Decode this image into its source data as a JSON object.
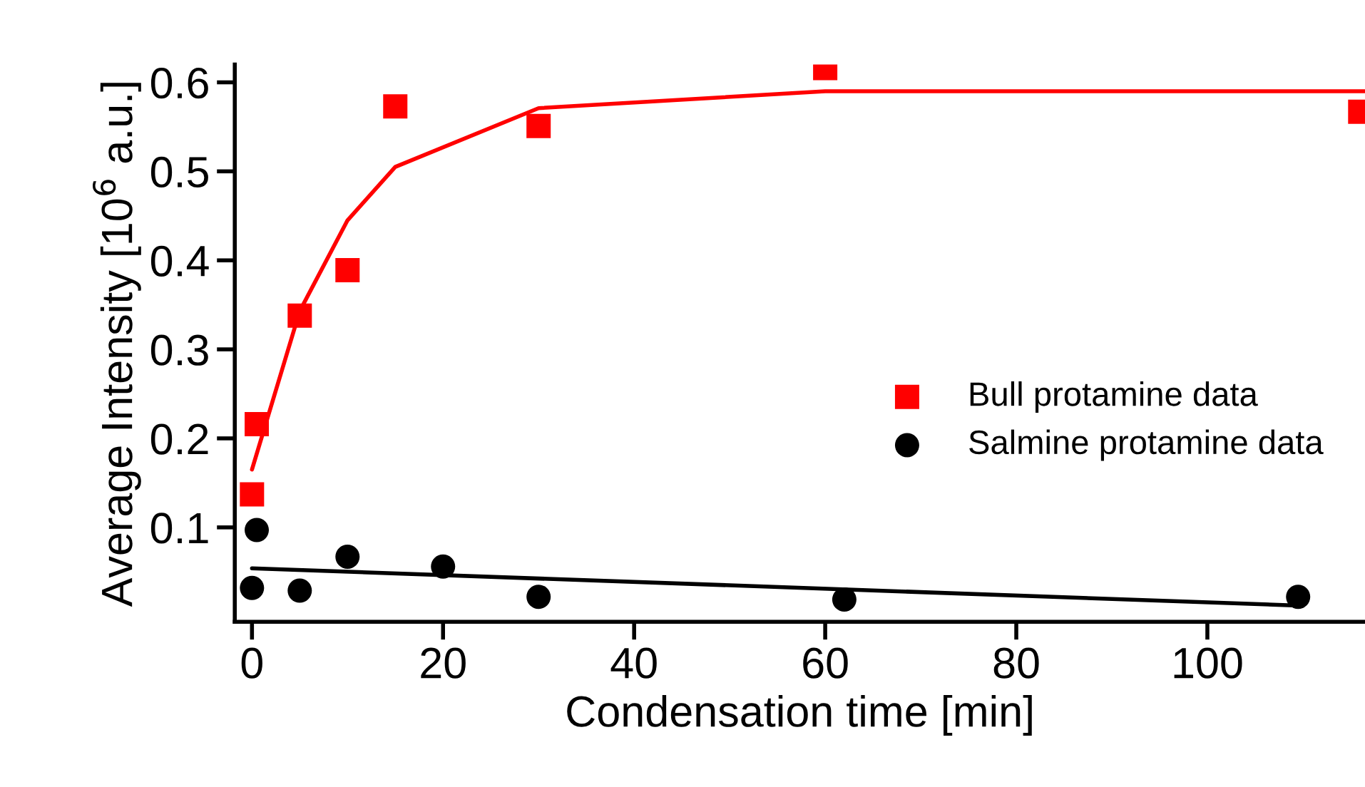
{
  "chart_data": {
    "type": "scatter",
    "xlabel": "Condensation time [min]",
    "ylabel": "Average Intensity [10$^{6}$ a.u.]",
    "xlim": [
      -1.8,
      116.5
    ],
    "ylim": [
      -0.006,
      0.62
    ],
    "xticks": [
      0,
      20,
      40,
      60,
      80,
      100
    ],
    "yticks": [
      0.1,
      0.2,
      0.3,
      0.4,
      0.5,
      0.6
    ],
    "grid": false,
    "legend": "right",
    "series": [
      {
        "name": "Bull protamine data",
        "marker": "square",
        "color": "#ff0000",
        "x": [
          0,
          0.5,
          5,
          10,
          15,
          30,
          60,
          116
        ],
        "values": [
          0.137,
          0.216,
          0.338,
          0.389,
          0.573,
          0.551,
          0.616,
          0.567
        ]
      },
      {
        "name": "Salmine protamine data",
        "marker": "circle",
        "color": "#000000",
        "x": [
          0,
          0.5,
          5,
          10,
          20,
          30,
          62,
          109.5
        ],
        "values": [
          0.032,
          0.097,
          0.029,
          0.067,
          0.056,
          0.022,
          0.019,
          0.022
        ]
      },
      {
        "type": "line",
        "marker": "none",
        "color": "#ff0000",
        "x": [
          0,
          5,
          10,
          15,
          30,
          60,
          116.5
        ],
        "values": [
          0.165,
          0.343,
          0.445,
          0.505,
          0.571,
          0.59,
          0.59
        ]
      },
      {
        "type": "line",
        "marker": "none",
        "color": "#000000",
        "x": [
          0,
          110
        ],
        "values": [
          0.054,
          0.012
        ]
      }
    ]
  }
}
